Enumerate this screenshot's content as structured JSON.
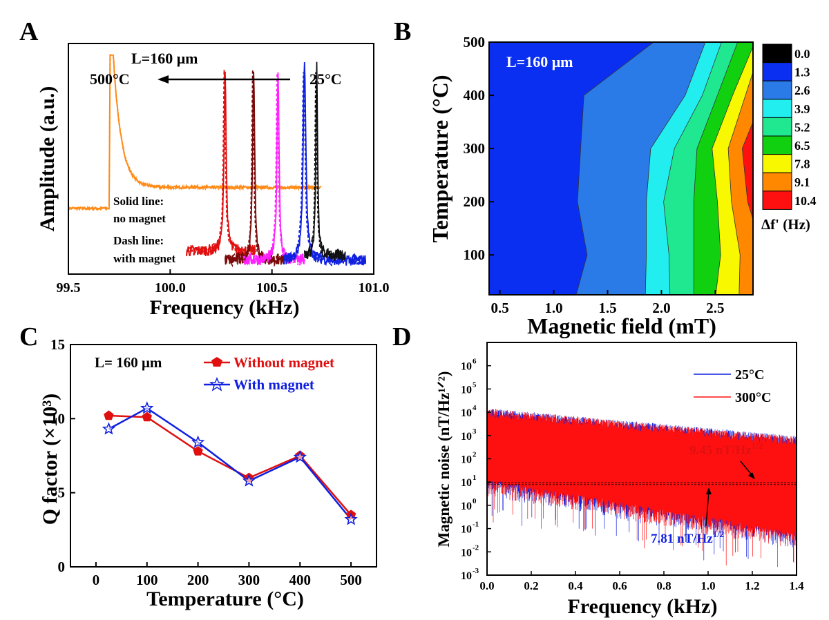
{
  "chart_data": [
    {
      "panel": "A",
      "type": "line",
      "annotation": "L=160 μm",
      "note_left": "500°C",
      "note_right": "25°C",
      "legend_text": [
        "Solid line:",
        "no magnet",
        "Dash line:",
        "with magnet"
      ],
      "xlabel": "Frequency (kHz)",
      "ylabel": "Amplitude (a.u.)",
      "xlim": [
        99.5,
        101.0
      ],
      "xticks": [
        "99.5",
        "100.0",
        "100.5",
        "101.0"
      ],
      "series": [
        {
          "color": "#ff8c1a",
          "base": 0.28,
          "peak_x": 99.72,
          "peak_y": 0.95,
          "x_start": 99.5,
          "x_end": 100.74,
          "width": 0.04
        },
        {
          "color": "#e01010",
          "base": 0.1,
          "peak_x": 100.27,
          "peak_y": 0.9,
          "x_start": 100.08,
          "x_end": 100.42,
          "width": 0.006
        },
        {
          "color": "#7a0a0a",
          "base": 0.06,
          "peak_x": 100.41,
          "peak_y": 0.9,
          "x_start": 100.27,
          "x_end": 100.56,
          "width": 0.006
        },
        {
          "color": "#ff22ff",
          "base": 0.06,
          "peak_x": 100.53,
          "peak_y": 0.9,
          "x_start": 100.36,
          "x_end": 100.66,
          "width": 0.006
        },
        {
          "color": "#1020e0",
          "base": 0.06,
          "peak_x": 100.66,
          "peak_y": 0.91,
          "x_start": 100.56,
          "x_end": 100.96,
          "width": 0.008
        },
        {
          "color": "#111111",
          "base": 0.08,
          "peak_x": 100.72,
          "peak_y": 0.9,
          "x_start": 100.66,
          "x_end": 100.86,
          "width": 0.005
        }
      ]
    },
    {
      "panel": "B",
      "type": "heatmap",
      "annotation": "L=160 μm",
      "xlabel": "Magnetic field (mT)",
      "ylabel": "Temperature (°C)",
      "xlim": [
        0.4,
        2.85
      ],
      "ylim": [
        25,
        500
      ],
      "xticks": [
        "0.5",
        "1.0",
        "1.5",
        "2.0",
        "2.5"
      ],
      "yticks": [
        "100",
        "200",
        "300",
        "400",
        "500"
      ],
      "colorbar_label": "Δf' (Hz)",
      "levels": [
        "0.0",
        "1.3",
        "2.6",
        "3.9",
        "5.2",
        "6.5",
        "7.8",
        "9.1",
        "10.4"
      ],
      "level_colors": [
        "#000000",
        "#0a2ff0",
        "#2a7ae8",
        "#22eef0",
        "#20e890",
        "#10d010",
        "#f8f800",
        "#ff8800",
        "#ff1010"
      ],
      "temperatures": [
        25,
        100,
        200,
        300,
        400,
        500
      ],
      "boundaries": [
        {
          "level": "2.6",
          "field": [
            1.2,
            1.31,
            1.22,
            1.25,
            1.28,
            1.97
          ]
        },
        {
          "level": "3.9",
          "field": [
            1.85,
            1.86,
            1.86,
            1.9,
            2.22,
            2.42
          ]
        },
        {
          "level": "5.2",
          "field": [
            2.08,
            2.07,
            2.02,
            2.12,
            2.38,
            2.57
          ]
        },
        {
          "level": "6.5",
          "field": [
            2.3,
            2.3,
            2.3,
            2.33,
            2.52,
            2.72
          ]
        },
        {
          "level": "7.8",
          "field": [
            2.5,
            2.55,
            2.52,
            2.47,
            2.66,
            2.88
          ]
        },
        {
          "level": "9.1",
          "field": [
            2.72,
            2.73,
            2.65,
            2.62,
            2.78,
            2.95
          ]
        },
        {
          "level": "10.4",
          "field": [
            2.95,
            2.95,
            2.8,
            2.75,
            2.95,
            2.98
          ]
        }
      ]
    },
    {
      "panel": "C",
      "type": "line",
      "annotation": "L= 160 μm",
      "xlabel": "Temperature (°C)",
      "ylabel": "Q factor (×10³)",
      "xlim": [
        -50,
        550
      ],
      "ylim": [
        0,
        15
      ],
      "xticks": [
        "0",
        "100",
        "200",
        "300",
        "400",
        "500"
      ],
      "yticks": [
        "0",
        "5",
        "10",
        "15"
      ],
      "x": [
        25,
        100,
        200,
        300,
        400,
        500
      ],
      "series": [
        {
          "name": "Without magnet",
          "color": "#e01010",
          "values": [
            10.2,
            10.1,
            7.8,
            6.0,
            7.5,
            3.5
          ]
        },
        {
          "name": "With magnet",
          "color": "#1020e0",
          "values": [
            9.3,
            10.7,
            8.4,
            5.8,
            7.4,
            3.2
          ]
        }
      ]
    },
    {
      "panel": "D",
      "type": "line",
      "xlabel": "Frequency (kHz)",
      "ylabel": "Magnetic noise (nT/Hz¹ᐟ²)",
      "xlim": [
        0.0,
        1.4
      ],
      "ylim_log10": [
        -3,
        7
      ],
      "xticks": [
        "0.0",
        "0.2",
        "0.4",
        "0.6",
        "0.8",
        "1.0",
        "1.2",
        "1.4"
      ],
      "yticks_exp": [
        "-3",
        "-2",
        "-1",
        "0",
        "1",
        "2",
        "3",
        "4",
        "5",
        "6"
      ],
      "series": [
        {
          "name": "25°C",
          "color": "#1020e0"
        },
        {
          "name": "300°C",
          "color": "#ff1010"
        }
      ],
      "annotations": [
        {
          "text": "9.45 nT/Hz",
          "sup": "1/2",
          "color": "#e01010"
        },
        {
          "text": "7.81 nT/Hz",
          "sup": "1/2",
          "color": "#1020e0"
        }
      ],
      "noise_floor": [
        9.45,
        7.81
      ]
    }
  ],
  "panel_labels": [
    "A",
    "B",
    "C",
    "D"
  ]
}
